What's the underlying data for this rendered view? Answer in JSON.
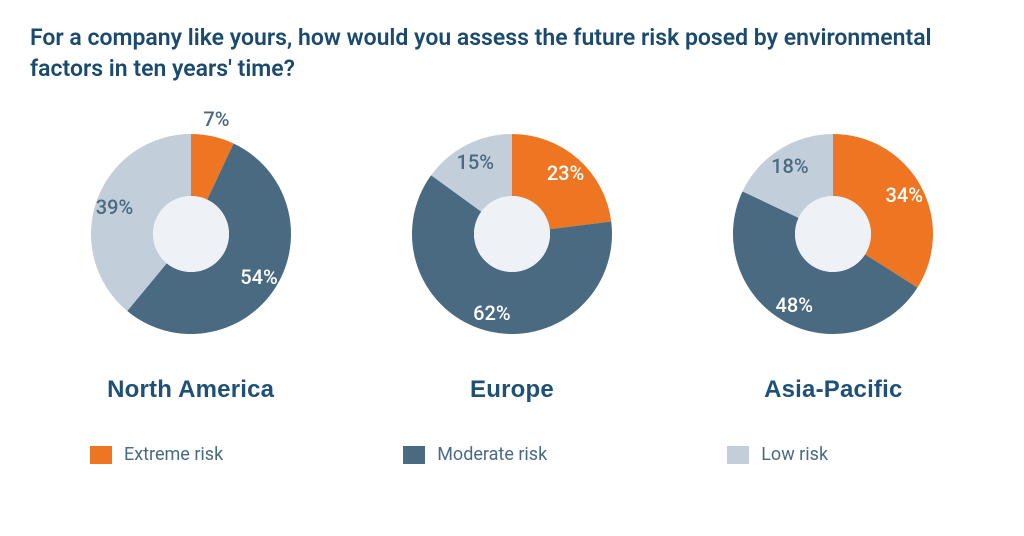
{
  "title": "For a company like yours, how would you assess the future risk posed by environmental factors in ten years' time?",
  "title_color": "#1a4a6e",
  "title_fontsize": 23,
  "background_color": "#ffffff",
  "chart_type": "donut",
  "donut": {
    "outer_radius": 100,
    "inner_radius": 38,
    "hole_color": "#eef2f6",
    "start_angle_deg": 0,
    "direction": "clockwise",
    "label_fontsize": 20
  },
  "categories": [
    {
      "key": "extreme",
      "label": "Extreme risk",
      "color": "#ee7623"
    },
    {
      "key": "moderate",
      "label": "Moderate risk",
      "color": "#4a6a82"
    },
    {
      "key": "low",
      "label": "Low risk",
      "color": "#c2ced9"
    }
  ],
  "regions": [
    {
      "name": "North America",
      "slices": [
        {
          "category": "extreme",
          "value": 7,
          "label": "7%",
          "label_color": "#4a6a82",
          "label_pos": "outside"
        },
        {
          "category": "moderate",
          "value": 54,
          "label": "54%",
          "label_color": "#ffffff",
          "label_pos": "inside"
        },
        {
          "category": "low",
          "value": 39,
          "label": "39%",
          "label_color": "#4a6a82",
          "label_pos": "inside"
        }
      ]
    },
    {
      "name": "Europe",
      "slices": [
        {
          "category": "extreme",
          "value": 23,
          "label": "23%",
          "label_color": "#ffffff",
          "label_pos": "inside"
        },
        {
          "category": "moderate",
          "value": 62,
          "label": "62%",
          "label_color": "#ffffff",
          "label_pos": "inside"
        },
        {
          "category": "low",
          "value": 15,
          "label": "15%",
          "label_color": "#4a6a82",
          "label_pos": "inside"
        }
      ]
    },
    {
      "name": "Asia-Pacific",
      "slices": [
        {
          "category": "extreme",
          "value": 34,
          "label": "34%",
          "label_color": "#ffffff",
          "label_pos": "inside"
        },
        {
          "category": "moderate",
          "value": 48,
          "label": "48%",
          "label_color": "#ffffff",
          "label_pos": "inside"
        },
        {
          "category": "low",
          "value": 18,
          "label": "18%",
          "label_color": "#4a6a82",
          "label_pos": "inside"
        }
      ]
    }
  ],
  "region_label_color": "#1e5078",
  "region_label_fontsize": 24,
  "legend_fontsize": 18,
  "legend_text_color": "#4a6a82"
}
